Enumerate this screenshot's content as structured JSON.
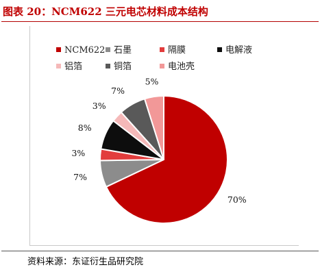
{
  "title": "图表 20：NCM622 三元电芯材料成本结构",
  "source": "资料来源：东证衍生品研究院",
  "chart_data": {
    "type": "pie",
    "legend_position": "top",
    "slices": [
      {
        "name": "NCM622",
        "value": 70,
        "label": "70%",
        "color": "#c00000"
      },
      {
        "name": "石墨",
        "value": 7,
        "label": "7%",
        "color": "#8c8c8c"
      },
      {
        "name": "隔膜",
        "value": 3,
        "label": "3%",
        "color": "#e23c3c"
      },
      {
        "name": "电解液",
        "value": 8,
        "label": "8%",
        "color": "#0d0d0d"
      },
      {
        "name": "铝箔",
        "value": 3,
        "label": "3%",
        "color": "#f5b9b9"
      },
      {
        "name": "铜箔",
        "value": 7,
        "label": "7%",
        "color": "#595959"
      },
      {
        "name": "电池壳",
        "value": 5,
        "label": "5%",
        "color": "#f29898"
      }
    ]
  }
}
